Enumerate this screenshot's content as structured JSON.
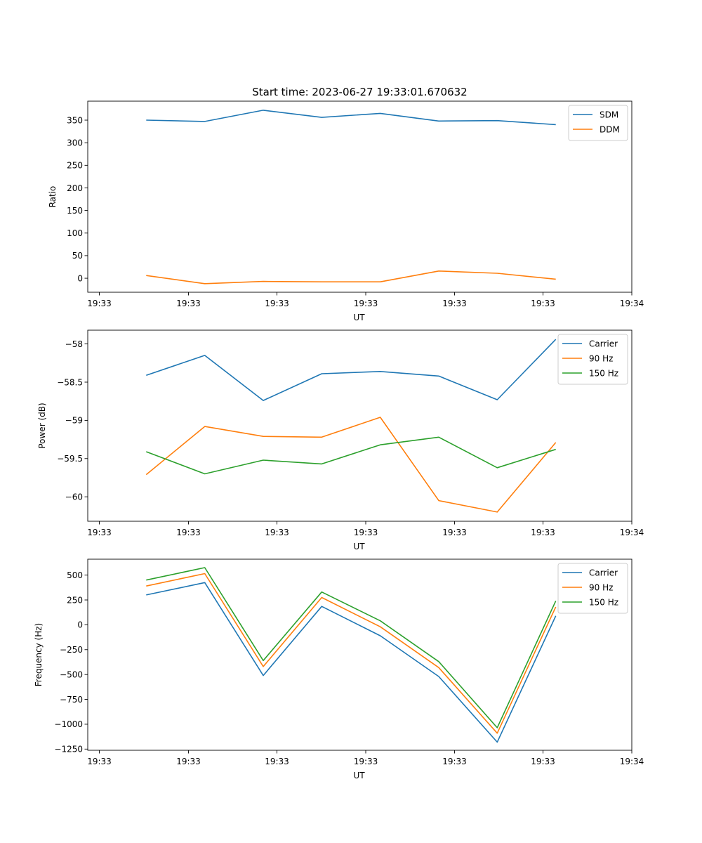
{
  "figure_title": "Start time: 2023-06-27 19:33:01.670632",
  "colors": {
    "blue": "#1f77b4",
    "orange": "#ff7f0e",
    "green": "#2ca02c"
  },
  "chart_data": [
    {
      "type": "line",
      "title": "Start time: 2023-06-27 19:33:01.670632",
      "xlabel": "UT",
      "ylabel": "Ratio",
      "x_ticks": [
        "19:33",
        "19:33",
        "19:33",
        "19:33",
        "19:33",
        "19:33",
        "19:34"
      ],
      "x": [
        1,
        2,
        3,
        4,
        5,
        6,
        7,
        8
      ],
      "xlim": [
        0,
        9.3
      ],
      "ylim": [
        -31,
        392
      ],
      "y_ticks": [
        0,
        50,
        100,
        150,
        200,
        250,
        300,
        350
      ],
      "legend_loc": "upper-right",
      "series": [
        {
          "name": "SDM",
          "color": "#1f77b4",
          "values": [
            350,
            347,
            372,
            356,
            365,
            348,
            349,
            340
          ]
        },
        {
          "name": "DDM",
          "color": "#ff7f0e",
          "values": [
            6,
            -12,
            -7,
            -8,
            -8,
            16,
            11,
            -2
          ]
        }
      ]
    },
    {
      "type": "line",
      "xlabel": "UT",
      "ylabel": "Power (dB)",
      "x_ticks": [
        "19:33",
        "19:33",
        "19:33",
        "19:33",
        "19:33",
        "19:33",
        "19:34"
      ],
      "x": [
        1,
        2,
        3,
        4,
        5,
        6,
        7,
        8
      ],
      "xlim": [
        0,
        9.3
      ],
      "ylim": [
        -60.32,
        -57.82
      ],
      "y_ticks": [
        -60.0,
        -59.5,
        -59.0,
        -58.5,
        -58.0
      ],
      "legend_loc": "upper-right",
      "series": [
        {
          "name": "Carrier",
          "color": "#1f77b4",
          "values": [
            -58.41,
            -58.15,
            -58.74,
            -58.39,
            -58.36,
            -58.42,
            -58.73,
            -57.94
          ]
        },
        {
          "name": "90 Hz",
          "color": "#ff7f0e",
          "values": [
            -59.71,
            -59.08,
            -59.21,
            -59.22,
            -58.96,
            -60.05,
            -60.2,
            -59.29
          ]
        },
        {
          "name": "150 Hz",
          "color": "#2ca02c",
          "values": [
            -59.41,
            -59.7,
            -59.52,
            -59.57,
            -59.32,
            -59.22,
            -59.62,
            -59.38
          ]
        }
      ]
    },
    {
      "type": "line",
      "xlabel": "UT",
      "ylabel": "Frequency (Hz)",
      "x_ticks": [
        "19:33",
        "19:33",
        "19:33",
        "19:33",
        "19:33",
        "19:33",
        "19:34"
      ],
      "x": [
        1,
        2,
        3,
        4,
        5,
        6,
        7,
        8
      ],
      "xlim": [
        0,
        9.3
      ],
      "ylim": [
        -1262,
        660
      ],
      "y_ticks": [
        -1250,
        -1000,
        -750,
        -500,
        -250,
        0,
        250,
        500
      ],
      "legend_loc": "upper-right",
      "series": [
        {
          "name": "Carrier",
          "color": "#1f77b4",
          "values": [
            300,
            425,
            -510,
            185,
            -110,
            -520,
            -1180,
            90
          ]
        },
        {
          "name": "90 Hz",
          "color": "#ff7f0e",
          "values": [
            390,
            515,
            -420,
            275,
            -20,
            -430,
            -1090,
            180
          ]
        },
        {
          "name": "150 Hz",
          "color": "#2ca02c",
          "values": [
            450,
            575,
            -360,
            330,
            40,
            -370,
            -1035,
            240
          ]
        }
      ]
    }
  ]
}
